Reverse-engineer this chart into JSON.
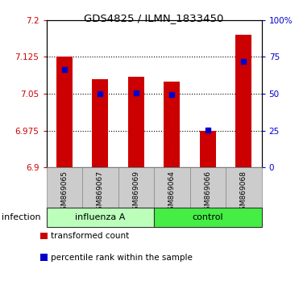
{
  "title": "GDS4825 / ILMN_1833450",
  "categories": [
    "GSM869065",
    "GSM869067",
    "GSM869069",
    "GSM869064",
    "GSM869066",
    "GSM869068"
  ],
  "bar_base": 6.9,
  "bar_tops": [
    7.125,
    7.08,
    7.085,
    7.075,
    6.975,
    7.17
  ],
  "percentile_values": [
    7.1,
    7.05,
    7.052,
    7.048,
    6.976,
    7.115
  ],
  "bar_color": "#cc0000",
  "percentile_color": "#0000cc",
  "ylim_left": [
    6.9,
    7.2
  ],
  "ylim_right": [
    0,
    100
  ],
  "yticks_left": [
    6.9,
    6.975,
    7.05,
    7.125,
    7.2
  ],
  "ytick_labels_left": [
    "6.9",
    "6.975",
    "7.05",
    "7.125",
    "7.2"
  ],
  "yticks_right": [
    0,
    25,
    50,
    75,
    100
  ],
  "ytick_labels_right": [
    "0",
    "25",
    "50",
    "75",
    "100%"
  ],
  "groups": [
    {
      "label": "influenza A",
      "start": 0,
      "end": 3,
      "color": "#bbffbb"
    },
    {
      "label": "control",
      "start": 3,
      "end": 6,
      "color": "#44ee44"
    }
  ],
  "group_label": "infection",
  "legend_items": [
    {
      "label": "transformed count",
      "color": "#cc0000"
    },
    {
      "label": "percentile rank within the sample",
      "color": "#0000cc"
    }
  ],
  "tick_label_color_left": "#cc0000",
  "tick_label_color_right": "#0000cc",
  "bar_width": 0.45,
  "background_color": "#ffffff"
}
